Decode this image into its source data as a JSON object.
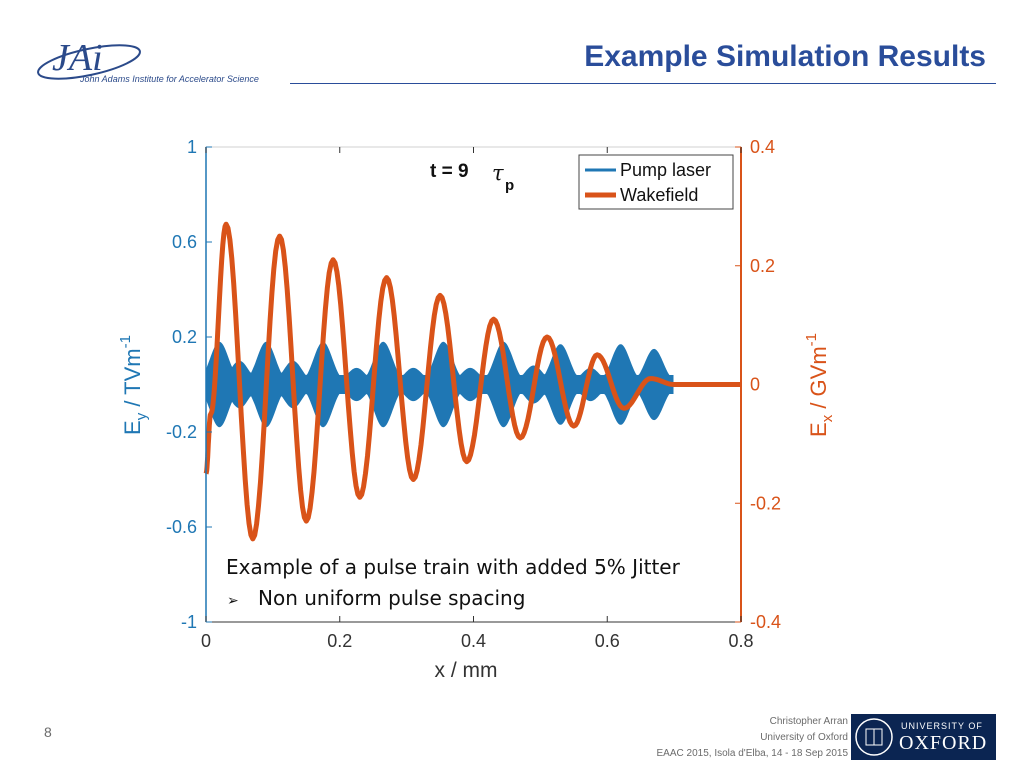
{
  "header": {
    "logo_text": "JAi",
    "logo_subtitle": "John Adams Institute for Accelerator Science",
    "title": "Example Simulation Results"
  },
  "footer": {
    "page_number": "8",
    "author": "Christopher Arran",
    "affiliation": "University of Oxford",
    "event": "EAAC 2015, Isola d'Elba, 14 - 18 Sep 2015",
    "oxford_top": "UNIVERSITY OF",
    "oxford_name": "OXFORD"
  },
  "colors": {
    "title": "#2a4d9a",
    "pump": "#1f77b4",
    "wake": "#d95319",
    "oxford_bg": "#0b2552"
  },
  "chart_data": {
    "type": "line",
    "annotation_t": "t = 9",
    "annotation_tau": "τ",
    "annotation_tau_sub": "p",
    "xlabel": "x / mm",
    "xlim": [
      0,
      0.8
    ],
    "xticks": [
      0,
      0.2,
      0.4,
      0.6,
      0.8
    ],
    "xtick_labels": [
      "0",
      "0.2",
      "0.4",
      "0.6",
      "0.8"
    ],
    "y_left": {
      "label_main": "E",
      "label_sub": "y",
      "label_rest": " / TVm",
      "label_sup": "-1",
      "lim": [
        -1,
        1
      ],
      "ticks": [
        -1,
        -0.6,
        -0.2,
        0.2,
        0.6,
        1
      ],
      "tick_labels": [
        "-1",
        "-0.6",
        "-0.2",
        "0.2",
        "0.6",
        "1"
      ]
    },
    "y_right": {
      "label_main": "E",
      "label_sub": "x",
      "label_rest": " / GVm",
      "label_sup": "-1",
      "lim": [
        -0.4,
        0.4
      ],
      "ticks": [
        -0.4,
        -0.2,
        0,
        0.2,
        0.4
      ],
      "tick_labels": [
        "-0.4",
        "-0.2",
        "0",
        "0.2",
        "0.4"
      ]
    },
    "legend": {
      "placement": "top-right",
      "entries": [
        "Pump laser",
        "Wakefield"
      ]
    },
    "series": [
      {
        "name": "Pump laser",
        "axis": "left",
        "kind": "pulse-envelope",
        "pulse_centers": [
          0.02,
          0.05,
          0.09,
          0.13,
          0.175,
          0.225,
          0.265,
          0.31,
          0.355,
          0.395,
          0.445,
          0.49,
          0.53,
          0.575,
          0.62,
          0.67
        ],
        "pulse_peaks": [
          0.18,
          0.1,
          0.18,
          0.1,
          0.18,
          0.07,
          0.18,
          0.07,
          0.18,
          0.07,
          0.18,
          0.08,
          0.17,
          0.07,
          0.17,
          0.15
        ],
        "pulse_width": 0.014,
        "baseline": 0.04,
        "x_end": 0.7
      },
      {
        "name": "Wakefield",
        "axis": "right",
        "x": [
          0,
          0.007,
          0.03,
          0.07,
          0.11,
          0.15,
          0.19,
          0.23,
          0.27,
          0.31,
          0.35,
          0.39,
          0.43,
          0.47,
          0.51,
          0.55,
          0.585,
          0.625,
          0.665,
          0.7,
          0.8
        ],
        "y": [
          -0.15,
          -0.05,
          0.27,
          -0.26,
          0.25,
          -0.23,
          0.21,
          -0.19,
          0.18,
          -0.16,
          0.15,
          -0.13,
          0.11,
          -0.09,
          0.08,
          -0.07,
          0.05,
          -0.04,
          0.01,
          0,
          0
        ]
      }
    ],
    "textbox": {
      "line1": "Example of a pulse train with added 5% Jitter",
      "bullet": "➢",
      "line2": "Non uniform pulse spacing"
    }
  }
}
